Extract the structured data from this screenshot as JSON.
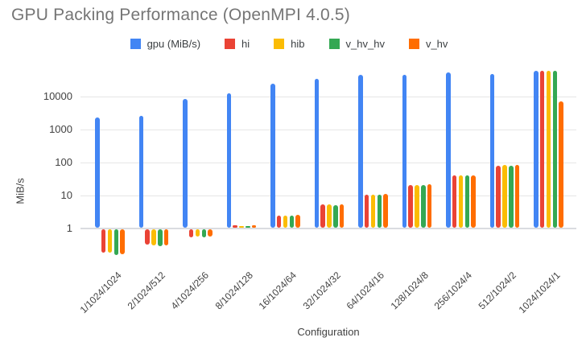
{
  "chart_data": {
    "type": "bar",
    "title": "GPU Packing Performance (OpenMPI 4.0.5)",
    "xlabel": "Configuration",
    "ylabel": "MiB/s",
    "y_scale": "log",
    "yticks": [
      "1",
      "10",
      "100",
      "1000",
      "10000"
    ],
    "ylim": [
      0.1,
      75000
    ],
    "grid": "horizontal",
    "legend_position": "top",
    "categories": [
      "1/1024/1024",
      "2/1024/512",
      "4/1024/256",
      "8/1024/128",
      "16/1024/64",
      "32/1024/32",
      "64/1024/16",
      "128/1024/8",
      "256/1024/4",
      "512/1024/2",
      "1024/1024/1"
    ],
    "series": [
      {
        "name": "gpu (MiB/s)",
        "color": "#4285F4",
        "values": [
          2200,
          2500,
          7800,
          12000,
          23000,
          32000,
          43000,
          44000,
          50000,
          46000,
          56000
        ]
      },
      {
        "name": "hi",
        "color": "#EA4335",
        "values": [
          0.2,
          0.34,
          0.57,
          1.2,
          2.3,
          5.2,
          10.2,
          20,
          38,
          76,
          58000
        ]
      },
      {
        "name": "hib",
        "color": "#FBBC04",
        "values": [
          0.2,
          0.32,
          0.61,
          1.15,
          2.3,
          5.0,
          10,
          20,
          39,
          79,
          56000
        ]
      },
      {
        "name": "v_hv_hv",
        "color": "#34A853",
        "values": [
          0.17,
          0.31,
          0.57,
          1.15,
          2.3,
          4.9,
          10,
          20,
          39,
          76,
          58000
        ]
      },
      {
        "name": "v_hv",
        "color": "#FF6D01",
        "values": [
          0.18,
          0.32,
          0.59,
          1.2,
          2.4,
          5.0,
          10.3,
          21,
          39,
          78,
          6800
        ]
      }
    ]
  }
}
